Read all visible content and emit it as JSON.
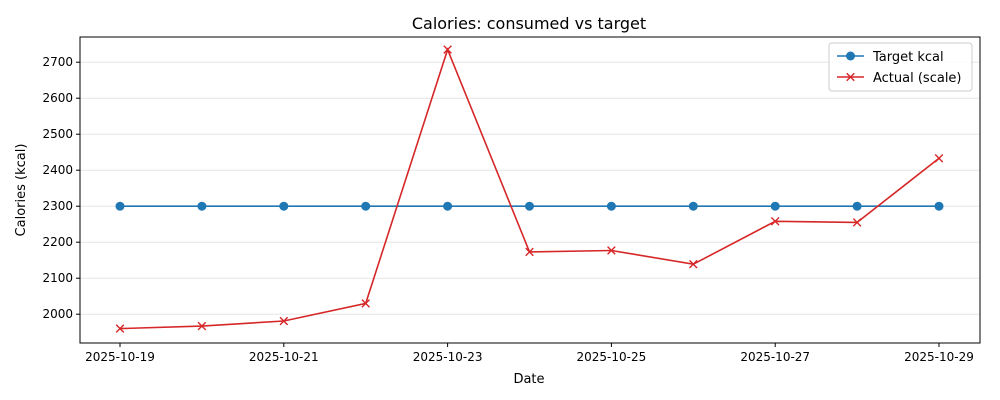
{
  "chart_data": {
    "type": "line",
    "title": "Calories: consumed vs target",
    "xlabel": "Date",
    "ylabel": "Calories (kcal)",
    "x": [
      "2025-10-19",
      "2025-10-20",
      "2025-10-21",
      "2025-10-22",
      "2025-10-23",
      "2025-10-24",
      "2025-10-25",
      "2025-10-26",
      "2025-10-27",
      "2025-10-28",
      "2025-10-29"
    ],
    "x_tick_labels": [
      "2025-10-19",
      "2025-10-21",
      "2025-10-23",
      "2025-10-25",
      "2025-10-27",
      "2025-10-29"
    ],
    "y_ticks": [
      2000,
      2100,
      2200,
      2300,
      2400,
      2500,
      2600,
      2700
    ],
    "ylim": [
      1920,
      2770
    ],
    "grid": "horizontal",
    "legend_position": "top-right",
    "series": [
      {
        "name": "Target kcal",
        "color": "#1f77b4",
        "marker": "circle",
        "values": [
          2300,
          2300,
          2300,
          2300,
          2300,
          2300,
          2300,
          2300,
          2300,
          2300,
          2300
        ]
      },
      {
        "name": "Actual (scale)",
        "color": "#d62728",
        "marker": "x",
        "values": [
          1960,
          1967,
          1981,
          2030,
          2735,
          2173,
          2177,
          2139,
          2258,
          2255,
          2433
        ]
      }
    ]
  }
}
